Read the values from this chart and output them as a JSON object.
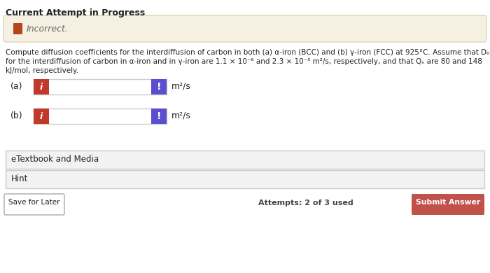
{
  "title": "Current Attempt in Progress",
  "incorrect_text": "Incorrect.",
  "line1": "Compute diffusion coefficients for the interdiffusion of carbon in both (a) α-iron (BCC) and (b) γ-iron (FCC) at 925°C. Assume that D₀",
  "line2": "for the interdiffusion of carbon in α-iron and in γ-iron are 1.1 × 10⁻⁶ and 2.3 × 10⁻⁵ m²/s, respectively, and that Qₙ are 80 and 148",
  "line3": "kJ/mol, respectively.",
  "label_a": "(a)",
  "label_b": "(b)",
  "unit": "m²/s",
  "etextbook_label": "eTextbook and Media",
  "hint_label": "Hint",
  "save_button": "Save for Later",
  "attempts_text": "Attempts: 2 of 3 used",
  "submit_button": "Submit Answer",
  "bg_color": "#ffffff",
  "incorrect_bg": "#f5f0e1",
  "incorrect_border": "#ddd5b8",
  "pencil_color": "#b5451b",
  "incorrect_text_color": "#666666",
  "red_btn_color": "#c0392b",
  "blue_btn_color": "#5b4fcf",
  "input_border_color": "#cccccc",
  "section_bg": "#f2f2f2",
  "section_border": "#cccccc",
  "save_btn_border": "#aaaaaa",
  "submit_btn_color": "#c0524a",
  "title_color": "#222222",
  "problem_text_color": "#222222",
  "attempts_color": "#444444"
}
